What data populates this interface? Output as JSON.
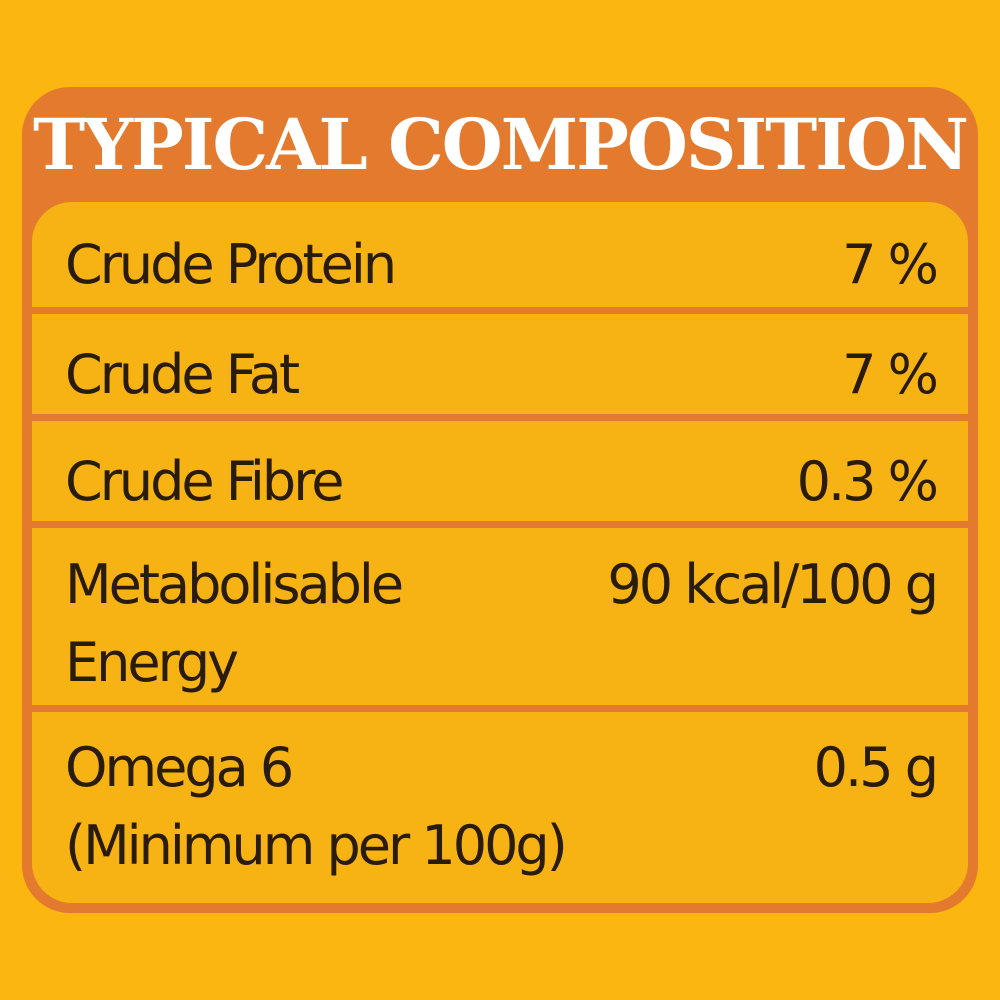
{
  "title": "TYPICAL COMPOSITION",
  "rows": [
    {
      "label_lines": [
        "Crude Protein"
      ],
      "value": "7 %"
    },
    {
      "label_lines": [
        "Crude Fat"
      ],
      "value": "7 %"
    },
    {
      "label_lines": [
        "Crude Fibre"
      ],
      "value": "0.3 %"
    },
    {
      "label_lines": [
        "Metabolisable",
        "Energy"
      ],
      "value": "90 kcal/100 g"
    },
    {
      "label_lines": [
        "Omega 6",
        "(Minimum per 100g)"
      ],
      "value": "0.5 g"
    }
  ],
  "colors": {
    "background": "#FBB60F",
    "panel": "#E37A2E",
    "table": "#F7B314",
    "text": "#2A1C0B",
    "title_text": "#FFFFFF"
  }
}
